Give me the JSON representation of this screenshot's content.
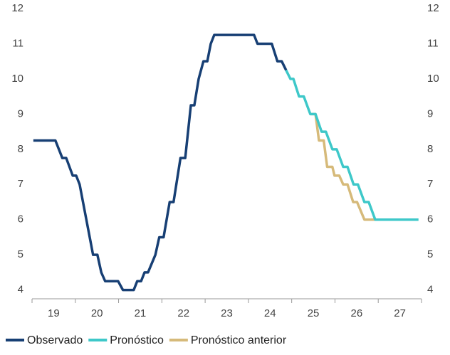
{
  "chart_data": {
    "type": "line",
    "xlim": [
      19,
      28
    ],
    "xticks": [
      {
        "value": 19.5,
        "label": "19"
      },
      {
        "value": 20.5,
        "label": "20"
      },
      {
        "value": 21.5,
        "label": "21"
      },
      {
        "value": 22.5,
        "label": "22"
      },
      {
        "value": 23.5,
        "label": "23"
      },
      {
        "value": 24.5,
        "label": "24"
      },
      {
        "value": 25.5,
        "label": "25"
      },
      {
        "value": 26.5,
        "label": "26"
      },
      {
        "value": 27.5,
        "label": "27"
      }
    ],
    "ylim": [
      3.75,
      12
    ],
    "yticks": [
      4,
      5,
      6,
      7,
      8,
      9,
      10,
      11,
      12
    ],
    "y2lim": [
      3.75,
      12
    ],
    "y2ticks": [
      4,
      5,
      6,
      7,
      8,
      9,
      10,
      11,
      12
    ],
    "grid": false,
    "legend": "bottom",
    "series": [
      {
        "name": "Pronóstico anterior",
        "color": "#d6ba7a",
        "x": [
          25.43,
          25.55,
          25.63,
          25.74,
          25.82,
          25.94,
          25.99,
          26.1,
          26.19,
          26.29,
          26.42,
          26.51,
          26.68,
          26.93
        ],
        "values": [
          9.0,
          9.0,
          8.25,
          8.25,
          7.5,
          7.5,
          7.25,
          7.25,
          7.0,
          7.0,
          6.5,
          6.5,
          6.0,
          6.0
        ]
      },
      {
        "name": "Pronóstico",
        "color": "#3ec8c9",
        "x": [
          24.87,
          24.97,
          25.04,
          25.17,
          25.28,
          25.43,
          25.55,
          25.69,
          25.79,
          25.94,
          26.04,
          26.19,
          26.29,
          26.43,
          26.53,
          26.68,
          26.78,
          26.93,
          27.93
        ],
        "values": [
          10.25,
          10.0,
          10.0,
          9.5,
          9.5,
          9.0,
          9.0,
          8.5,
          8.5,
          8.0,
          8.0,
          7.5,
          7.5,
          7.0,
          7.0,
          6.5,
          6.5,
          6.0,
          6.0
        ]
      },
      {
        "name": "Observado",
        "color": "#173f74",
        "x": [
          19.03,
          19.54,
          19.7,
          19.79,
          19.94,
          20.02,
          20.1,
          20.41,
          20.51,
          20.6,
          20.69,
          20.99,
          21.1,
          21.35,
          21.43,
          21.52,
          21.6,
          21.68,
          21.85,
          21.94,
          22.04,
          22.18,
          22.27,
          22.43,
          22.54,
          22.67,
          22.75,
          22.85,
          22.96,
          23.05,
          23.13,
          23.21,
          24.13,
          24.21,
          24.54,
          24.67,
          24.77,
          24.87
        ],
        "values": [
          8.25,
          8.25,
          7.75,
          7.75,
          7.25,
          7.25,
          7.0,
          5.0,
          5.0,
          4.5,
          4.25,
          4.25,
          4.0,
          4.0,
          4.25,
          4.25,
          4.5,
          4.5,
          5.0,
          5.5,
          5.5,
          6.5,
          6.5,
          7.75,
          7.75,
          9.25,
          9.25,
          10.0,
          10.5,
          10.5,
          11.0,
          11.25,
          11.25,
          11.0,
          11.0,
          10.5,
          10.5,
          10.25
        ]
      }
    ]
  }
}
